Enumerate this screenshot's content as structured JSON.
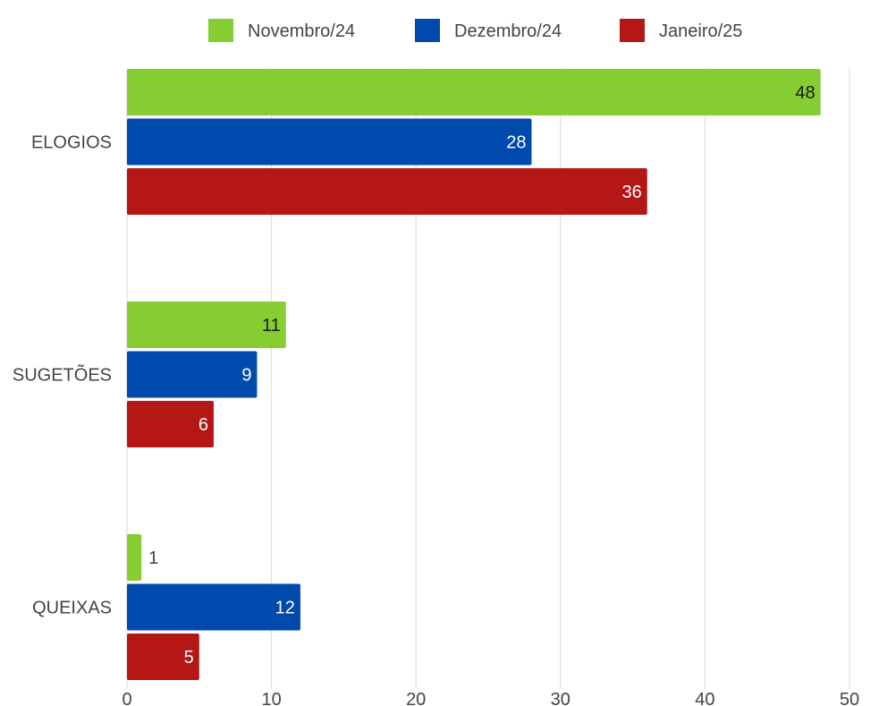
{
  "chart_data": {
    "type": "bar",
    "orientation": "horizontal",
    "categories": [
      "ELOGIOS",
      "SUGETÕES",
      "QUEIXAS"
    ],
    "series": [
      {
        "name": "Novembro/24",
        "color": "#86cc33",
        "values": [
          48,
          11,
          1
        ]
      },
      {
        "name": "Dezembro/24",
        "color": "#004aad",
        "values": [
          28,
          9,
          12
        ]
      },
      {
        "name": "Janeiro/25",
        "color": "#b51717",
        "values": [
          36,
          6,
          5
        ]
      }
    ],
    "xlim": [
      0,
      50
    ],
    "xticks": [
      "0",
      "10",
      "20",
      "30",
      "40",
      "50"
    ],
    "grid": true,
    "legend": "top",
    "title": "",
    "xlabel": "",
    "ylabel": ""
  }
}
